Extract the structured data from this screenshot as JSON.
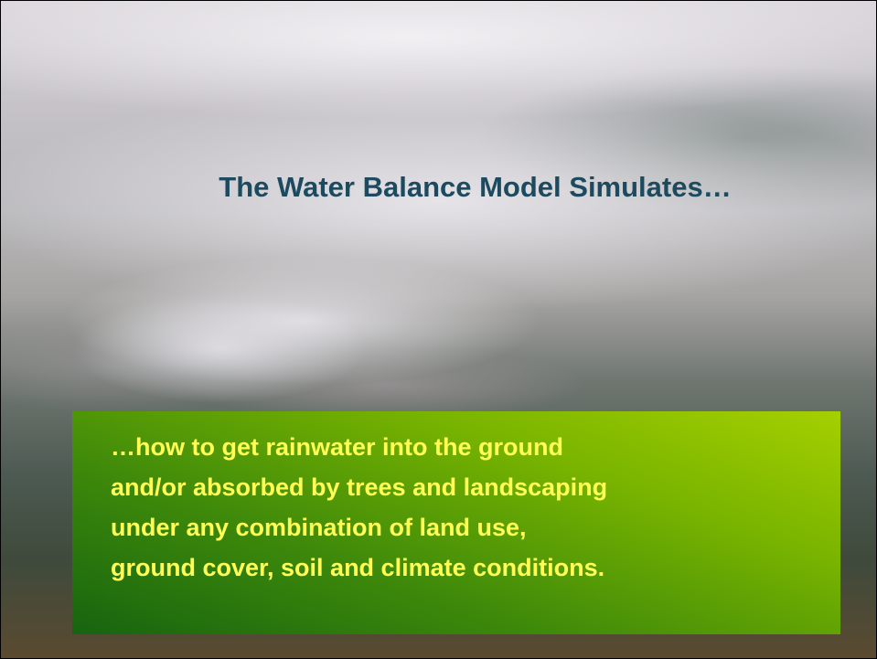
{
  "slide": {
    "title": "The Water Balance Model Simulates…",
    "body_lines": [
      "…how to get rainwater into the ground",
      "and/or absorbed by trees and landscaping",
      "under any combination of land use,",
      "ground cover, soil and climate conditions."
    ]
  }
}
